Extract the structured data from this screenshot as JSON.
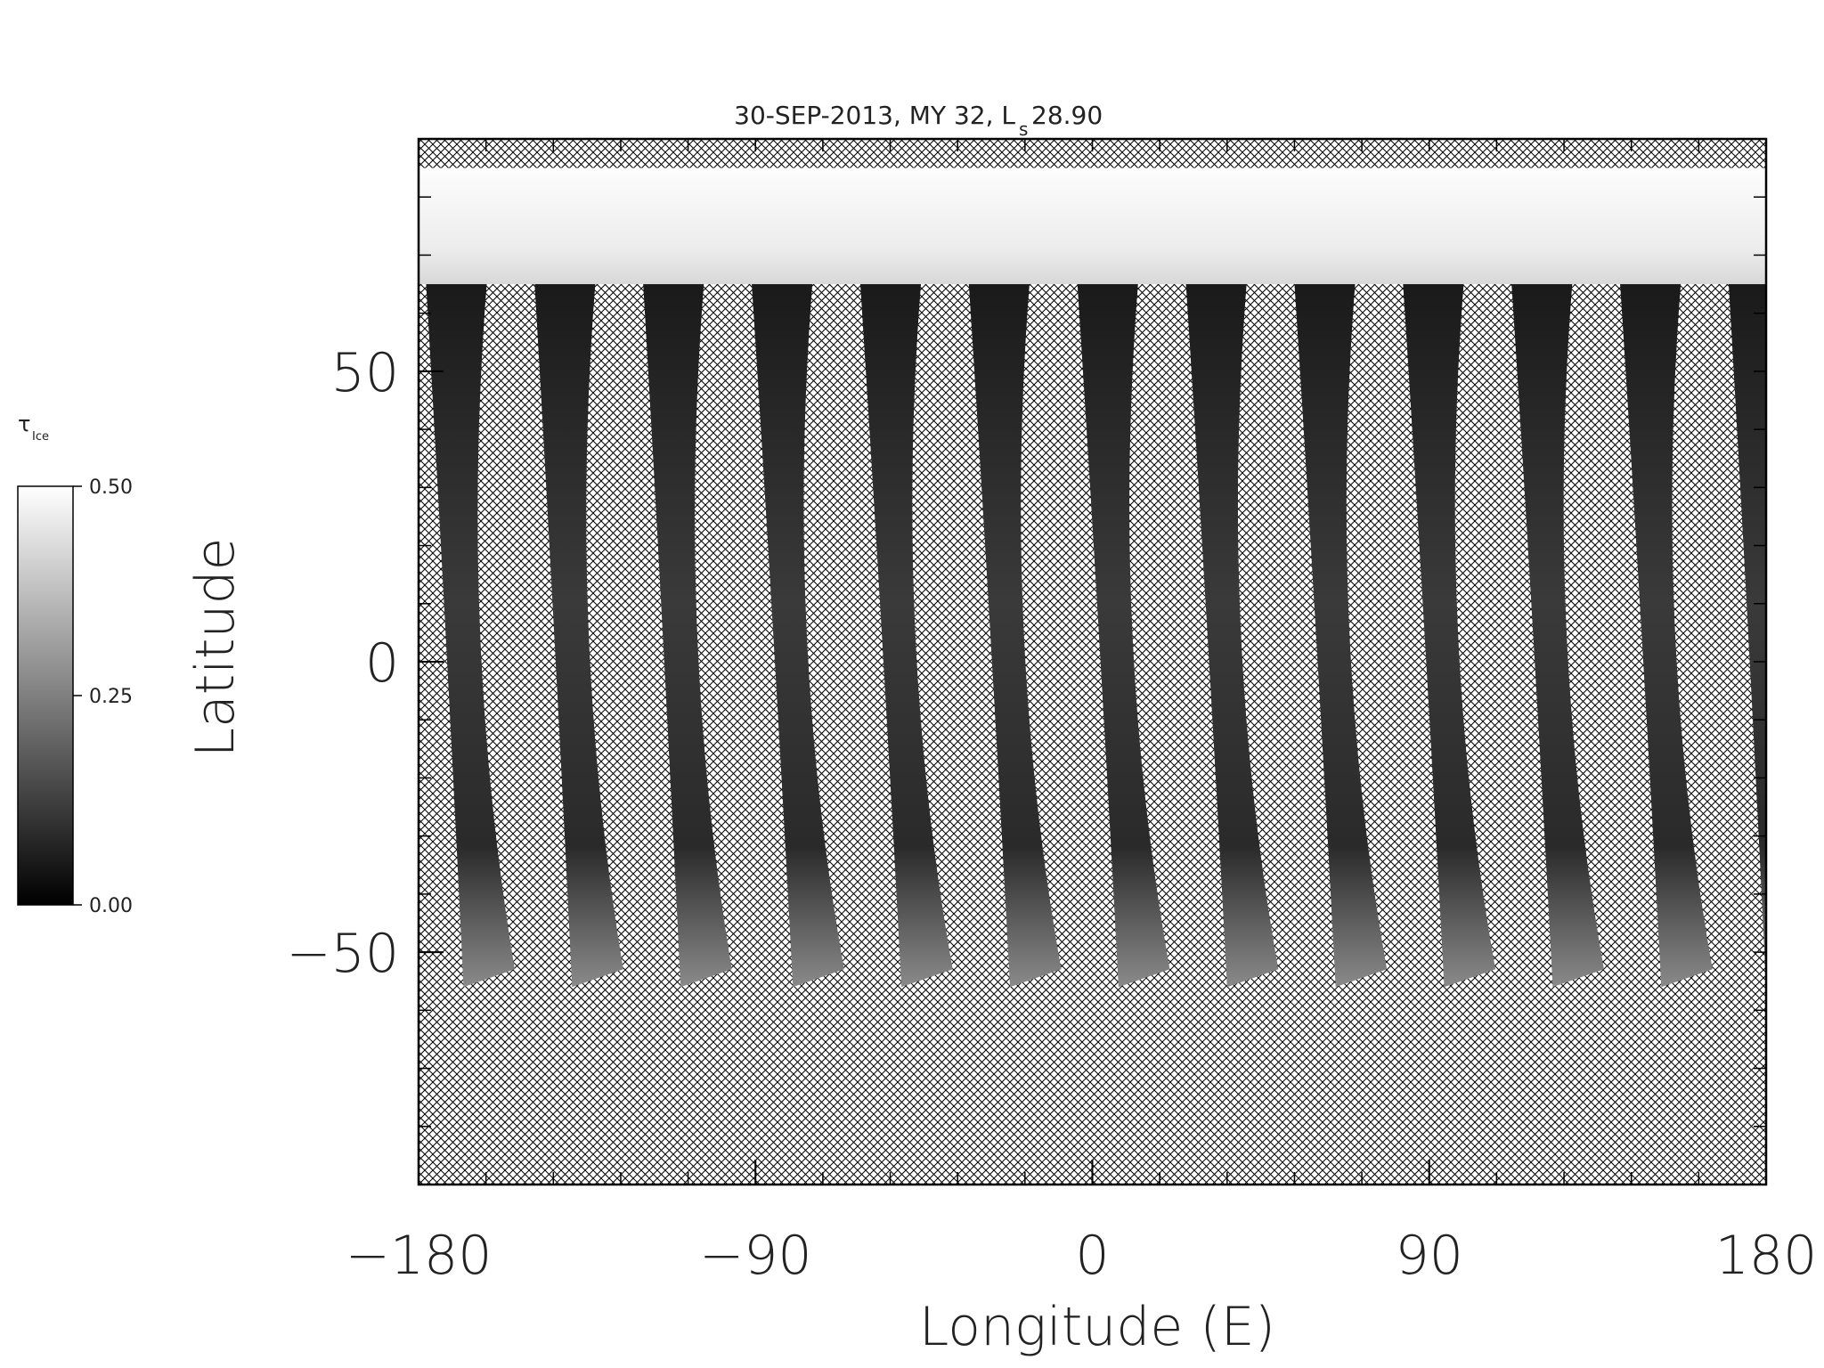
{
  "chart_data": {
    "type": "heatmap",
    "title": "30-SEP-2013, MY 32,  L",
    "title_subscript": "s",
    "title_suffix": " 28.90",
    "xlabel": "Longitude (E)",
    "ylabel": "Latitude",
    "xlim": [
      -180,
      180
    ],
    "ylim": [
      -90,
      90
    ],
    "xticks": [
      -180,
      -90,
      0,
      90,
      180
    ],
    "xtick_labels": [
      "−180",
      "−90",
      "0",
      "90",
      "180"
    ],
    "yticks": [
      50,
      0,
      -50
    ],
    "ytick_labels": [
      "50",
      "0",
      "−50"
    ],
    "colorbar": {
      "label": "τ",
      "label_subscript": "Ice",
      "min": 0.0,
      "max": 0.5,
      "ticks": [
        0.5,
        0.25,
        0.0
      ],
      "tick_labels": [
        "0.50",
        "0.25",
        "0.00"
      ],
      "colormap": "grayscale"
    },
    "no_data_pattern": "crosshatch",
    "north_cap_lat_range": [
      65,
      85
    ],
    "swaths": [
      {
        "lon_top": -178,
        "lon_bottom": -168
      },
      {
        "lon_top": -149,
        "lon_bottom": -139
      },
      {
        "lon_top": -120,
        "lon_bottom": -110
      },
      {
        "lon_top": -91,
        "lon_bottom": -80
      },
      {
        "lon_top": -62,
        "lon_bottom": -51
      },
      {
        "lon_top": -33,
        "lon_bottom": -22
      },
      {
        "lon_top": -4,
        "lon_bottom": 7
      },
      {
        "lon_top": 25,
        "lon_bottom": 36
      },
      {
        "lon_top": 54,
        "lon_bottom": 65
      },
      {
        "lon_top": 83,
        "lon_bottom": 94
      },
      {
        "lon_top": 112,
        "lon_bottom": 123
      },
      {
        "lon_top": 141,
        "lon_bottom": 152
      },
      {
        "lon_top": 170,
        "lon_bottom": 180
      }
    ],
    "swath_lat_range": [
      -56,
      65
    ],
    "swath_values": [
      0.05,
      0.08,
      0.07,
      0.09,
      0.06,
      0.07,
      0.05,
      0.06,
      0.08,
      0.07,
      0.06,
      0.08,
      0.07
    ]
  }
}
